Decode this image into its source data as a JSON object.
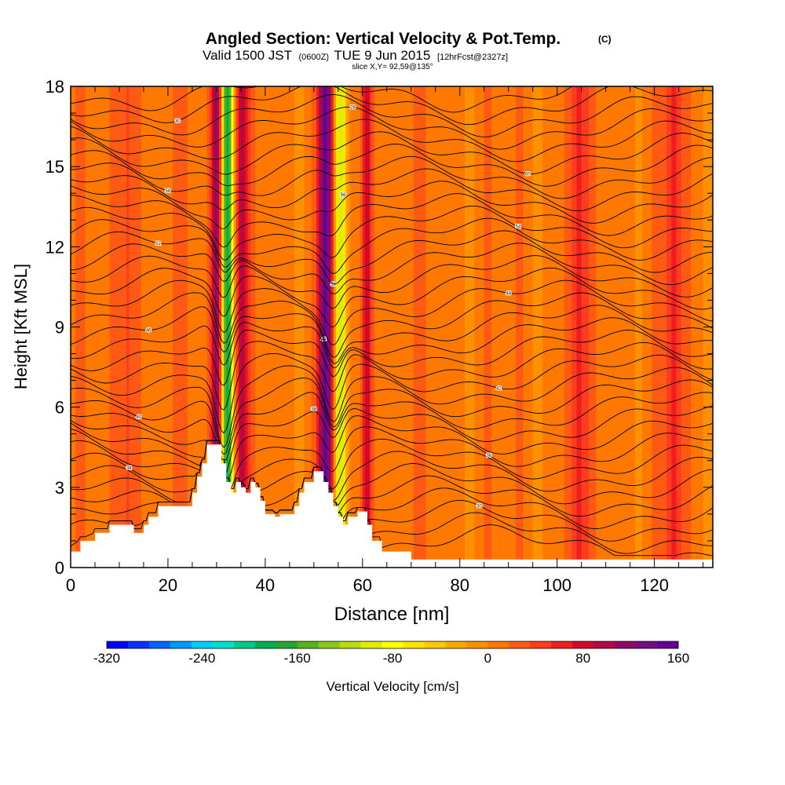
{
  "header": {
    "title": "Angled Section: Vertical Velocity & Pot.Temp.",
    "title_unit": "(C)",
    "valid_main": "Valid 1500 JST",
    "valid_z": "(0600Z)",
    "valid_date": "TUE 9 Jun 2015",
    "forecast": "[12hrFcst@2327z]",
    "slice": "slice X,Y= 92,59@135°"
  },
  "chart_data": {
    "type": "heatmap",
    "xlabel": "Distance [nm]",
    "ylabel": "Height [Kft MSL]",
    "xlim": [
      0,
      132
    ],
    "ylim": [
      0,
      18
    ],
    "x_ticks": [
      0,
      20,
      40,
      60,
      80,
      100,
      120
    ],
    "y_ticks": [
      0,
      3,
      6,
      9,
      12,
      15,
      18
    ],
    "colorbar": {
      "label": "Vertical Velocity [cm/s]",
      "range": [
        -320,
        160
      ],
      "ticks": [
        -320,
        -240,
        -160,
        -80,
        0,
        80,
        160
      ],
      "colors": [
        "#0000ff",
        "#0033ff",
        "#0066ff",
        "#0099ff",
        "#00ccff",
        "#00e0cc",
        "#00cc88",
        "#00b050",
        "#22a830",
        "#55b520",
        "#88c818",
        "#b8dc10",
        "#e0ec00",
        "#ffff00",
        "#ffe400",
        "#ffc800",
        "#ffaa00",
        "#ff9000",
        "#ff7800",
        "#ff5a14",
        "#ff3c1e",
        "#f01e1e",
        "#d00a28",
        "#b00a46",
        "#900a64",
        "#780a82",
        "#64009a"
      ]
    },
    "background_w": 10,
    "w_features": [
      {
        "x": 30.5,
        "w": 140,
        "halfwidth": 1.6
      },
      {
        "x": 35.0,
        "w": 85,
        "halfwidth": 1.3
      },
      {
        "x": 52.5,
        "w": 135,
        "halfwidth": 1.6
      },
      {
        "x": 61.0,
        "w": 90,
        "halfwidth": 1.0
      },
      {
        "x": 32.0,
        "w": -230,
        "halfwidth": 1.4
      },
      {
        "x": 55.5,
        "w": -115,
        "halfwidth": 1.4
      },
      {
        "x": 12.0,
        "w": 40,
        "halfwidth": 2.0
      },
      {
        "x": 104.0,
        "w": 45,
        "halfwidth": 2.0
      },
      {
        "x": 124.0,
        "w": 50,
        "halfwidth": 1.8
      }
    ],
    "terrain": [
      [
        0,
        0.6
      ],
      [
        2,
        0.6
      ],
      [
        2,
        1.0
      ],
      [
        5,
        1.0
      ],
      [
        5,
        1.3
      ],
      [
        8,
        1.3
      ],
      [
        8,
        1.6
      ],
      [
        13,
        1.6
      ],
      [
        13,
        1.3
      ],
      [
        15,
        1.3
      ],
      [
        15,
        1.6
      ],
      [
        16,
        1.6
      ],
      [
        16,
        1.9
      ],
      [
        18,
        1.9
      ],
      [
        18,
        2.3
      ],
      [
        25,
        2.3
      ],
      [
        25,
        2.8
      ],
      [
        26,
        2.8
      ],
      [
        26,
        3.4
      ],
      [
        27,
        3.4
      ],
      [
        27,
        3.9
      ],
      [
        28,
        3.9
      ],
      [
        28,
        4.6
      ],
      [
        31,
        4.6
      ],
      [
        31,
        3.9
      ],
      [
        32,
        3.9
      ],
      [
        32,
        3.2
      ],
      [
        33,
        3.2
      ],
      [
        33,
        2.8
      ],
      [
        34,
        2.8
      ],
      [
        34,
        3.2
      ],
      [
        35,
        3.2
      ],
      [
        35,
        3.0
      ],
      [
        36,
        3.0
      ],
      [
        36,
        2.8
      ],
      [
        37,
        2.8
      ],
      [
        37,
        3.2
      ],
      [
        38,
        3.2
      ],
      [
        38,
        3.0
      ],
      [
        39,
        3.0
      ],
      [
        39,
        2.5
      ],
      [
        40,
        2.5
      ],
      [
        40,
        2.0
      ],
      [
        42,
        2.0
      ],
      [
        42,
        1.9
      ],
      [
        43,
        1.9
      ],
      [
        43,
        2.0
      ],
      [
        46,
        2.0
      ],
      [
        46,
        2.3
      ],
      [
        47,
        2.3
      ],
      [
        47,
        2.8
      ],
      [
        48,
        2.8
      ],
      [
        48,
        3.2
      ],
      [
        50,
        3.2
      ],
      [
        50,
        3.6
      ],
      [
        52,
        3.6
      ],
      [
        52,
        3.2
      ],
      [
        53,
        3.2
      ],
      [
        53,
        2.8
      ],
      [
        54,
        2.8
      ],
      [
        54,
        2.3
      ],
      [
        55,
        2.3
      ],
      [
        55,
        1.9
      ],
      [
        56,
        1.9
      ],
      [
        56,
        1.6
      ],
      [
        57,
        1.6
      ],
      [
        57,
        1.9
      ],
      [
        59,
        1.9
      ],
      [
        59,
        2.1
      ],
      [
        61,
        2.1
      ],
      [
        61,
        1.6
      ],
      [
        62,
        1.6
      ],
      [
        62,
        1.0
      ],
      [
        64,
        1.0
      ],
      [
        64,
        0.6
      ],
      [
        70,
        0.6
      ],
      [
        70,
        0.3
      ],
      [
        132,
        0.3
      ]
    ],
    "theta_labels": [
      "28",
      "30",
      "32",
      "34",
      "36",
      "38",
      "40",
      "42",
      "44",
      "46",
      "48",
      "50",
      "52",
      "54",
      "56",
      "58",
      "60"
    ]
  }
}
